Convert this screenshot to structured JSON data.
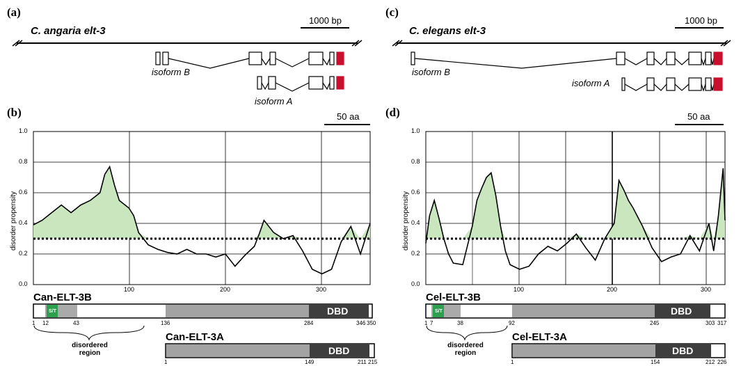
{
  "panels": {
    "a": "(a)",
    "b": "(b)",
    "c": "(c)",
    "d": "(d)"
  },
  "gene_a": {
    "species": "C. angaria elt-3",
    "scale": "1000 bp",
    "isoform_b": "isoform B",
    "isoform_a": "isoform A"
  },
  "gene_c": {
    "species": "C. elegans elt-3",
    "scale": "1000 bp",
    "isoform_b": "isoform B",
    "isoform_a": "isoform A"
  },
  "plot_b": {
    "scale": "50 aa",
    "ylabel": "disorder propensity",
    "yticks": [
      "0.0",
      "0.2",
      "0.4",
      "0.6",
      "0.8",
      "1.0"
    ],
    "xticks": [
      "100",
      "200",
      "300"
    ],
    "protein_b": "Can-ELT-3B",
    "protein_a": "Can-ELT-3A",
    "dbd": "DBD",
    "st": "S/T",
    "nums_b": [
      "1",
      "12",
      "43",
      "136",
      "284",
      "346",
      "350"
    ],
    "nums_a": [
      "1",
      "149",
      "211",
      "215"
    ],
    "disordered": "disordered region"
  },
  "plot_d": {
    "scale": "50 aa",
    "ylabel": "disorder propensity",
    "yticks": [
      "0.0",
      "0.2",
      "0.4",
      "0.6",
      "0.8",
      "1.0"
    ],
    "xticks": [
      "100",
      "200",
      "300"
    ],
    "protein_b": "Cel-ELT-3B",
    "protein_a": "Cel-ELT-3A",
    "dbd": "DBD",
    "st": "S/T",
    "nums_b": [
      "1",
      "7",
      "38",
      "92",
      "245",
      "303",
      "317"
    ],
    "nums_a": [
      "1",
      "154",
      "212",
      "226"
    ],
    "disordered": "disordered region"
  },
  "chart_data": [
    {
      "type": "line",
      "title": "",
      "ylabel": "disorder propensity",
      "xlim": [
        1,
        350
      ],
      "ylim": [
        0,
        1
      ],
      "threshold": 0.3,
      "x": [
        1,
        10,
        20,
        30,
        40,
        50,
        60,
        70,
        75,
        80,
        85,
        90,
        100,
        105,
        110,
        120,
        130,
        140,
        150,
        160,
        170,
        180,
        190,
        200,
        210,
        220,
        230,
        235,
        240,
        250,
        260,
        270,
        280,
        290,
        300,
        310,
        320,
        330,
        340,
        350
      ],
      "y": [
        0.39,
        0.42,
        0.47,
        0.52,
        0.47,
        0.52,
        0.55,
        0.6,
        0.72,
        0.77,
        0.65,
        0.55,
        0.5,
        0.45,
        0.34,
        0.26,
        0.23,
        0.21,
        0.2,
        0.23,
        0.2,
        0.2,
        0.18,
        0.2,
        0.12,
        0.19,
        0.25,
        0.33,
        0.42,
        0.34,
        0.3,
        0.32,
        0.22,
        0.1,
        0.07,
        0.1,
        0.28,
        0.38,
        0.2,
        0.4
      ]
    },
    {
      "type": "line",
      "title": "",
      "ylabel": "disorder propensity",
      "xlim": [
        1,
        317
      ],
      "ylim": [
        0,
        1
      ],
      "threshold": 0.3,
      "x": [
        1,
        5,
        10,
        15,
        20,
        25,
        30,
        40,
        50,
        55,
        60,
        65,
        70,
        75,
        80,
        85,
        90,
        100,
        110,
        120,
        130,
        140,
        150,
        160,
        170,
        180,
        190,
        195,
        200,
        205,
        210,
        215,
        220,
        230,
        240,
        250,
        260,
        270,
        280,
        290,
        300,
        305,
        310,
        315,
        317
      ],
      "y": [
        0.27,
        0.45,
        0.55,
        0.43,
        0.3,
        0.2,
        0.14,
        0.13,
        0.38,
        0.55,
        0.63,
        0.7,
        0.73,
        0.58,
        0.38,
        0.22,
        0.13,
        0.1,
        0.12,
        0.2,
        0.25,
        0.22,
        0.27,
        0.33,
        0.24,
        0.16,
        0.3,
        0.35,
        0.4,
        0.68,
        0.62,
        0.55,
        0.5,
        0.38,
        0.24,
        0.15,
        0.18,
        0.2,
        0.32,
        0.22,
        0.4,
        0.22,
        0.45,
        0.76,
        0.42
      ]
    }
  ]
}
